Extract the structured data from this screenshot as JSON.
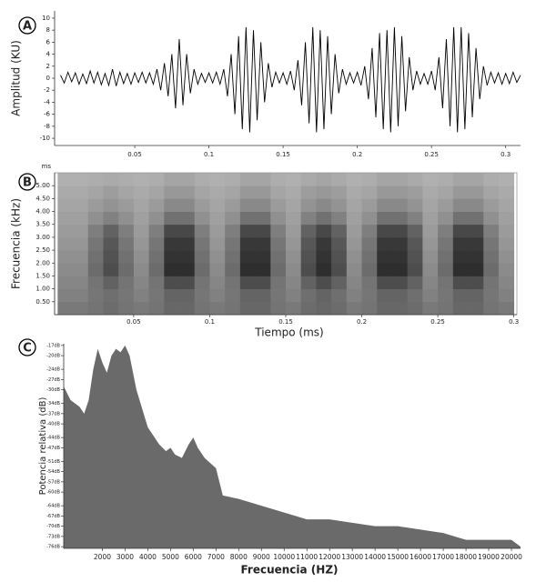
{
  "chart_data": [
    {
      "type": "line",
      "panel_label": "A",
      "y_label": "Amplitud (KU)",
      "color": "#000000",
      "xlim": [
        -0.004,
        0.31
      ],
      "ylim": [
        -11.2,
        11.2
      ],
      "xticks": [
        0.05,
        0.1,
        0.15,
        0.2,
        0.25,
        0.3
      ],
      "yticks": [
        -10,
        -8,
        -6,
        -4,
        -2,
        0,
        2,
        4,
        6,
        8,
        10
      ],
      "x": [
        0,
        0.0025,
        0.005,
        0.0075,
        0.01,
        0.0125,
        0.015,
        0.0175,
        0.02,
        0.0225,
        0.025,
        0.0275,
        0.03,
        0.0325,
        0.035,
        0.0375,
        0.04,
        0.0425,
        0.045,
        0.0475,
        0.05,
        0.0525,
        0.055,
        0.0575,
        0.06,
        0.0625,
        0.065,
        0.0675,
        0.07,
        0.0725,
        0.075,
        0.0775,
        0.08,
        0.0825,
        0.085,
        0.0875,
        0.09,
        0.0925,
        0.095,
        0.0975,
        0.1,
        0.1025,
        0.105,
        0.1075,
        0.11,
        0.1125,
        0.115,
        0.1175,
        0.12,
        0.1225,
        0.125,
        0.1275,
        0.13,
        0.1325,
        0.135,
        0.1375,
        0.14,
        0.1425,
        0.145,
        0.1475,
        0.15,
        0.1525,
        0.155,
        0.1575,
        0.16,
        0.1625,
        0.165,
        0.1675,
        0.17,
        0.1725,
        0.175,
        0.1775,
        0.18,
        0.1825,
        0.185,
        0.1875,
        0.19,
        0.1925,
        0.195,
        0.1975,
        0.2,
        0.2025,
        0.205,
        0.2075,
        0.21,
        0.2125,
        0.215,
        0.2175,
        0.22,
        0.2225,
        0.225,
        0.2275,
        0.23,
        0.2325,
        0.235,
        0.2375,
        0.24,
        0.2425,
        0.245,
        0.2475,
        0.25,
        0.2525,
        0.255,
        0.2575,
        0.26,
        0.2625,
        0.265,
        0.2675,
        0.27,
        0.2725,
        0.275,
        0.2775,
        0.28,
        0.2825,
        0.285,
        0.2875,
        0.29,
        0.2925,
        0.295,
        0.2975,
        0.3,
        0.3025,
        0.305,
        0.3075,
        0.31
      ],
      "values": [
        0.5,
        -0.8,
        1,
        -0.6,
        0.9,
        -1,
        0.7,
        -0.9,
        1.2,
        -0.8,
        1,
        -1.1,
        0.8,
        -1.2,
        1.5,
        -1.3,
        1,
        -0.9,
        0.8,
        -1,
        0.9,
        -0.7,
        1,
        -0.8,
        0.9,
        -1,
        1.5,
        -2,
        2.5,
        -3,
        4,
        -5,
        6.5,
        -4.5,
        4,
        -2.5,
        1.5,
        -1,
        0.8,
        -0.7,
        0.9,
        -0.8,
        1,
        -1,
        1.5,
        -3,
        4,
        -6,
        7,
        -8.5,
        8.5,
        -9,
        8,
        -7,
        6,
        -4,
        2.5,
        -1.5,
        1,
        -0.8,
        0.9,
        -1,
        1.2,
        -2,
        3,
        -4.5,
        6,
        -7.5,
        8.5,
        -9,
        8,
        -8.5,
        7,
        -6,
        4,
        -2.5,
        1.5,
        -1,
        0.9,
        -0.8,
        1,
        -1.2,
        2,
        -3.5,
        5,
        -6.5,
        7.5,
        -8.5,
        8,
        -9,
        8.5,
        -8,
        7,
        -5.5,
        3.5,
        -2,
        1.2,
        -1,
        0.8,
        -1,
        1.2,
        -2,
        3.5,
        -5,
        6.5,
        -8,
        8.5,
        -9,
        8.5,
        -8.5,
        7.5,
        -6.5,
        5,
        -3.5,
        2,
        -1.2,
        1,
        -0.8,
        0.9,
        -1,
        0.8,
        -0.9,
        1,
        -0.7,
        0.5
      ]
    },
    {
      "type": "heatmap",
      "panel_label": "B",
      "unit_label": "ms",
      "x_label": "Tiempo (ms)",
      "y_label": "Frecuencia (kHz)",
      "xlim": [
        -0.002,
        0.302
      ],
      "ylim": [
        0,
        5.5
      ],
      "xticks": [
        0.05,
        0.1,
        0.15,
        0.2,
        0.25,
        0.3
      ],
      "yticks": [
        {
          "value": 0.5,
          "label": "0.50"
        },
        {
          "value": 1,
          "label": "1.00"
        },
        {
          "value": 1.5,
          "label": "1.50"
        },
        {
          "value": 2,
          "label": "2.00"
        },
        {
          "value": 2.5,
          "label": "2.50"
        },
        {
          "value": 3,
          "label": "3.00"
        },
        {
          "value": 3.5,
          "label": "3.50"
        },
        {
          "value": 4,
          "label": "4.00"
        },
        {
          "value": 4.5,
          "label": "4.50"
        },
        {
          "value": 5,
          "label": "5.00"
        }
      ],
      "x_bins": [
        0,
        0.01,
        0.02,
        0.03,
        0.04,
        0.05,
        0.06,
        0.07,
        0.08,
        0.09,
        0.1,
        0.11,
        0.12,
        0.13,
        0.14,
        0.15,
        0.16,
        0.17,
        0.18,
        0.19,
        0.2,
        0.21,
        0.22,
        0.23,
        0.24,
        0.25,
        0.26,
        0.27,
        0.28,
        0.29,
        0.3
      ],
      "y_bins": [
        0,
        0.5,
        1,
        1.5,
        2,
        2.5,
        3,
        3.5,
        4,
        4.5,
        5,
        5.5
      ],
      "z": [
        [
          35,
          35,
          33,
          30,
          33,
          35,
          33,
          28,
          28,
          33,
          35,
          33,
          28,
          28,
          33,
          35,
          30,
          28,
          30,
          35,
          33,
          28,
          28,
          30,
          35,
          33,
          28,
          28,
          33,
          35
        ],
        [
          38,
          38,
          34,
          31,
          34,
          38,
          34,
          27,
          27,
          34,
          38,
          34,
          27,
          27,
          34,
          38,
          31,
          27,
          31,
          38,
          34,
          27,
          27,
          31,
          38,
          34,
          27,
          27,
          34,
          38
        ],
        [
          40,
          40,
          33,
          26,
          33,
          40,
          33,
          18,
          18,
          33,
          40,
          33,
          18,
          18,
          33,
          40,
          26,
          18,
          26,
          40,
          33,
          18,
          18,
          26,
          40,
          33,
          18,
          18,
          33,
          40
        ],
        [
          42,
          42,
          30,
          18,
          30,
          42,
          30,
          6,
          6,
          30,
          42,
          30,
          6,
          6,
          30,
          42,
          18,
          6,
          18,
          42,
          30,
          6,
          6,
          18,
          42,
          30,
          6,
          6,
          30,
          42
        ],
        [
          44,
          44,
          32,
          20,
          32,
          44,
          32,
          8,
          8,
          32,
          44,
          32,
          8,
          8,
          32,
          44,
          20,
          8,
          20,
          44,
          32,
          8,
          8,
          20,
          44,
          32,
          8,
          8,
          32,
          44
        ],
        [
          46,
          46,
          34,
          22,
          34,
          46,
          34,
          10,
          10,
          34,
          46,
          34,
          10,
          10,
          34,
          46,
          22,
          10,
          22,
          46,
          34,
          10,
          10,
          22,
          46,
          34,
          10,
          10,
          34,
          46
        ],
        [
          48,
          48,
          37,
          26,
          37,
          48,
          37,
          16,
          16,
          37,
          48,
          37,
          16,
          16,
          37,
          48,
          26,
          16,
          26,
          48,
          37,
          16,
          16,
          26,
          48,
          37,
          16,
          16,
          37,
          48
        ],
        [
          50,
          50,
          44,
          38,
          44,
          50,
          44,
          32,
          32,
          44,
          50,
          44,
          32,
          32,
          44,
          50,
          38,
          32,
          38,
          50,
          44,
          32,
          32,
          38,
          50,
          44,
          32,
          32,
          44,
          50
        ],
        [
          52,
          52,
          48,
          45,
          48,
          52,
          48,
          41,
          41,
          48,
          52,
          48,
          41,
          41,
          48,
          52,
          45,
          41,
          45,
          52,
          48,
          41,
          41,
          45,
          52,
          48,
          41,
          41,
          48,
          52
        ],
        [
          54,
          54,
          52,
          49,
          52,
          54,
          52,
          47,
          47,
          52,
          54,
          52,
          47,
          47,
          52,
          54,
          49,
          47,
          49,
          54,
          52,
          47,
          47,
          49,
          54,
          52,
          47,
          47,
          52,
          54
        ],
        [
          56,
          56,
          55,
          54,
          55,
          56,
          55,
          52,
          52,
          55,
          56,
          55,
          52,
          52,
          55,
          56,
          54,
          52,
          54,
          56,
          55,
          52,
          52,
          54,
          56,
          55,
          52,
          52,
          55,
          56
        ]
      ]
    },
    {
      "type": "area",
      "panel_label": "C",
      "x_label": "Frecuencia (HZ)",
      "y_label": "Potencia relativa (dB)",
      "color": "#6a6a6a",
      "xlim": [
        300,
        20400
      ],
      "ylim": [
        -76.5,
        -16.5
      ],
      "xticks": [
        2000,
        3000,
        4000,
        5000,
        6000,
        7000,
        8000,
        9000,
        10000,
        11000,
        12000,
        13000,
        14000,
        15000,
        16000,
        17000,
        18000,
        19000,
        20000
      ],
      "yticks": [
        {
          "value": -17,
          "label": "-17dB"
        },
        {
          "value": -20,
          "label": "-20dB"
        },
        {
          "value": -24,
          "label": "-24dB"
        },
        {
          "value": -27,
          "label": "-27dB"
        },
        {
          "value": -30,
          "label": "-30dB"
        },
        {
          "value": -34,
          "label": "-34dB"
        },
        {
          "value": -37,
          "label": "-37dB"
        },
        {
          "value": -40,
          "label": "-40dB"
        },
        {
          "value": -44,
          "label": "-44dB"
        },
        {
          "value": -47,
          "label": "-47dB"
        },
        {
          "value": -51,
          "label": "-51dB"
        },
        {
          "value": -54,
          "label": "-54dB"
        },
        {
          "value": -57,
          "label": "-57dB"
        },
        {
          "value": -60,
          "label": "-60dB"
        },
        {
          "value": -64,
          "label": "-64dB"
        },
        {
          "value": -67,
          "label": "-67dB"
        },
        {
          "value": -70,
          "label": "-70dB"
        },
        {
          "value": -73,
          "label": "-73dB"
        },
        {
          "value": -76,
          "label": "-76dB"
        }
      ],
      "x": [
        300,
        600,
        1000,
        1200,
        1400,
        1600,
        1800,
        2000,
        2200,
        2400,
        2600,
        2800,
        3000,
        3200,
        3500,
        4000,
        4500,
        4800,
        5000,
        5200,
        5500,
        5800,
        6000,
        6200,
        6500,
        7000,
        7300,
        8000,
        9000,
        10000,
        11000,
        12000,
        13000,
        14000,
        15000,
        16000,
        17000,
        18000,
        19000,
        20000,
        20400
      ],
      "values": [
        -29,
        -33,
        -35,
        -37,
        -33,
        -24,
        -18,
        -22,
        -25,
        -20,
        -18,
        -19,
        -17,
        -20,
        -30,
        -41,
        -46,
        -48,
        -47,
        -49,
        -50,
        -46,
        -44,
        -47,
        -50,
        -53,
        -61,
        -62,
        -64,
        -66,
        -68,
        -68,
        -69,
        -70,
        -70,
        -71,
        -72,
        -74,
        -74,
        -74,
        -76
      ]
    }
  ]
}
